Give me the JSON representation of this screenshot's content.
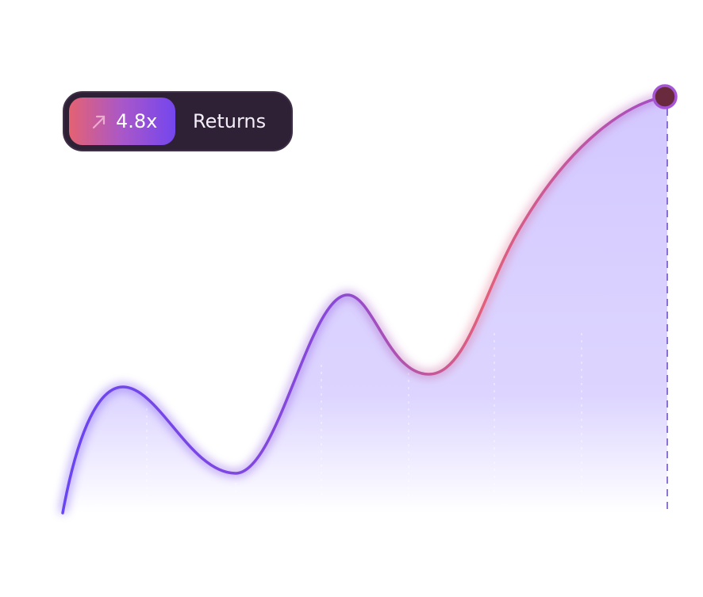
{
  "badge": {
    "value": "4.8x",
    "label": "Returns"
  }
}
